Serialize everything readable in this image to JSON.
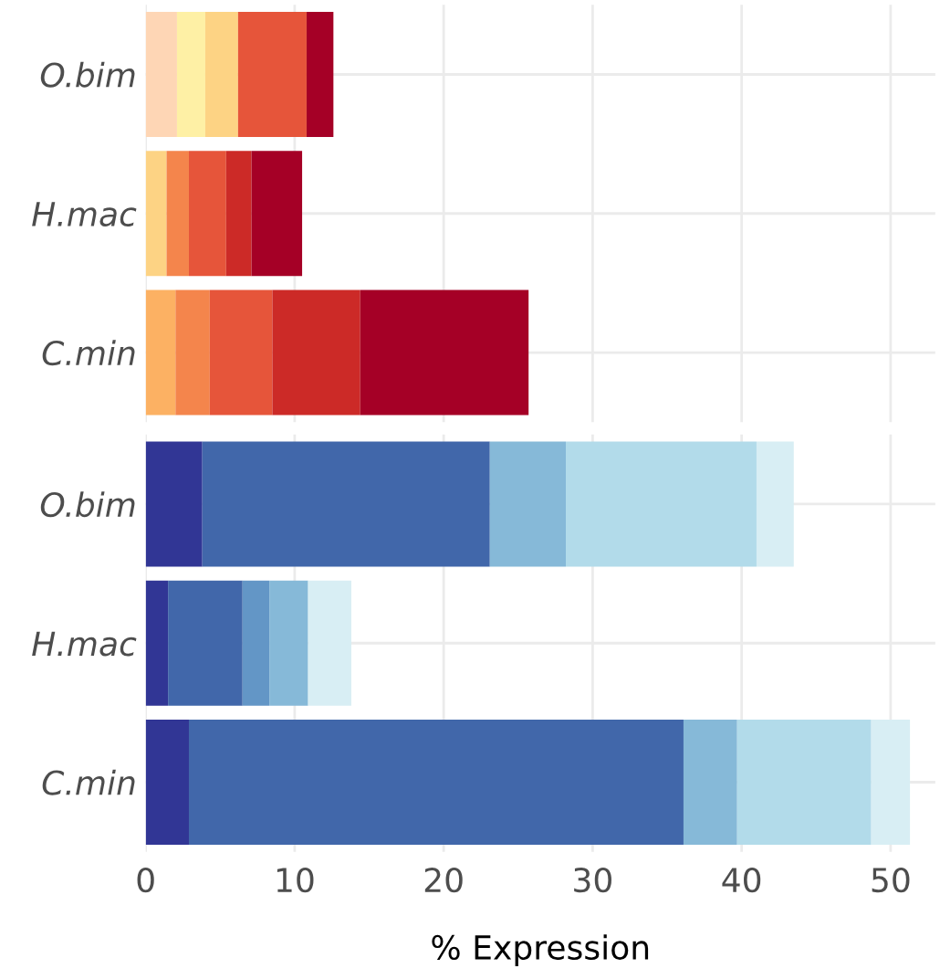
{
  "chart_data": [
    {
      "type": "bar",
      "orientation": "horizontal",
      "stacked": true,
      "categories": [
        "O.bim",
        "H.mac",
        "C.min"
      ],
      "xlim": [
        0,
        53
      ],
      "xticks": [
        0,
        10,
        20,
        30,
        40,
        50
      ],
      "tick_labels": "y",
      "grid": true,
      "series": [
        {
          "colors": [
            "#fed6b5",
            "#fdd384",
            "#fcb163"
          ],
          "values": [
            2.1,
            1.4,
            2.0
          ]
        },
        {
          "colors": [
            "#fef0a5",
            "#f4854c",
            "#f4854c"
          ],
          "values": [
            1.9,
            1.5,
            2.3
          ]
        },
        {
          "colors": [
            "#fdd384",
            "#e6553a",
            "#e6553a"
          ],
          "values": [
            2.2,
            2.5,
            4.2
          ]
        },
        {
          "colors": [
            "#e6553a",
            "#cc2a27",
            "#cc2a27"
          ],
          "values": [
            4.6,
            1.7,
            5.9
          ]
        },
        {
          "colors": [
            "#a50026",
            "#a50026",
            "#a50026"
          ],
          "values": [
            1.8,
            3.4,
            11.3
          ]
        }
      ]
    },
    {
      "type": "bar",
      "orientation": "horizontal",
      "stacked": true,
      "categories": [
        "O.bim",
        "H.mac",
        "C.min"
      ],
      "xlim": [
        0,
        53
      ],
      "xticks": [
        0,
        10,
        20,
        30,
        40,
        50
      ],
      "xlabel": "% Expression",
      "grid": true,
      "series": [
        {
          "colors": [
            "#313695",
            "#313695",
            "#313695"
          ],
          "values": [
            3.8,
            1.5,
            2.9
          ]
        },
        {
          "colors": [
            "#4167aa",
            "#4167aa",
            "#4167aa"
          ],
          "values": [
            19.3,
            5.0,
            33.2
          ]
        },
        {
          "colors": [
            "#86b9d8",
            "#6396c6",
            "#86b9d8"
          ],
          "values": [
            5.1,
            1.8,
            3.6
          ]
        },
        {
          "colors": [
            "#b2dbea",
            "#86b9d8",
            "#b2dbea"
          ],
          "values": [
            12.8,
            2.6,
            9.0
          ]
        },
        {
          "colors": [
            "#d8eef4",
            "#d8eef4",
            "#d8eef4"
          ],
          "values": [
            2.5,
            2.9,
            2.6
          ]
        }
      ]
    }
  ]
}
